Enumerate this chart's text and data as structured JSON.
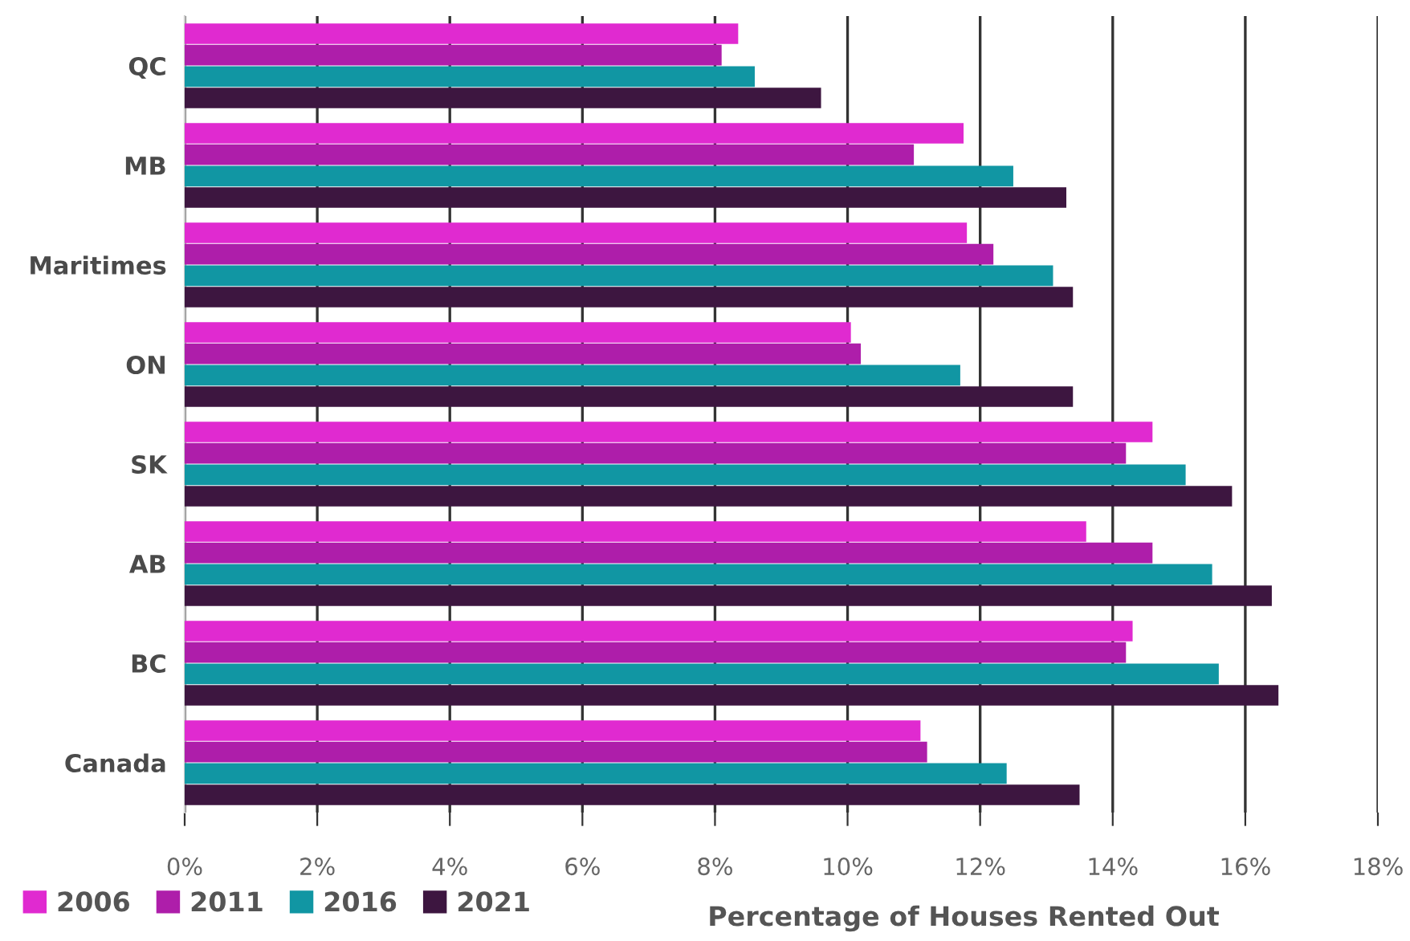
{
  "chart_data": {
    "type": "bar",
    "orientation": "horizontal",
    "xlabel": "Percentage of Houses Rented Out",
    "categories": [
      "QC",
      "MB",
      "Maritimes",
      "ON",
      "SK",
      "AB",
      "BC",
      "Canada"
    ],
    "series": [
      {
        "name": "2006",
        "color": "#e02ad0",
        "values": [
          8.35,
          11.75,
          11.8,
          10.05,
          14.6,
          13.6,
          14.3,
          11.1
        ]
      },
      {
        "name": "2011",
        "color": "#ae1eaa",
        "values": [
          8.1,
          11.0,
          12.2,
          10.2,
          14.2,
          14.6,
          14.2,
          11.2
        ]
      },
      {
        "name": "2016",
        "color": "#1196a3",
        "values": [
          8.6,
          12.5,
          13.1,
          11.7,
          15.1,
          15.5,
          15.6,
          12.4
        ]
      },
      {
        "name": "2021",
        "color": "#3d1640",
        "values": [
          9.6,
          13.3,
          13.4,
          13.4,
          15.8,
          16.4,
          16.5,
          13.5
        ]
      }
    ],
    "xlim": [
      0,
      18
    ],
    "xticks": [
      {
        "value": 0,
        "label": "0%"
      },
      {
        "value": 2,
        "label": "2%"
      },
      {
        "value": 4,
        "label": "4%"
      },
      {
        "value": 6,
        "label": "6%"
      },
      {
        "value": 8,
        "label": "8%"
      },
      {
        "value": 10,
        "label": "10%"
      },
      {
        "value": 12,
        "label": "12%"
      },
      {
        "value": 14,
        "label": "14%"
      },
      {
        "value": 16,
        "label": "16%"
      },
      {
        "value": 18,
        "label": "18%"
      }
    ],
    "grid": "x",
    "legend": "bottom left"
  }
}
